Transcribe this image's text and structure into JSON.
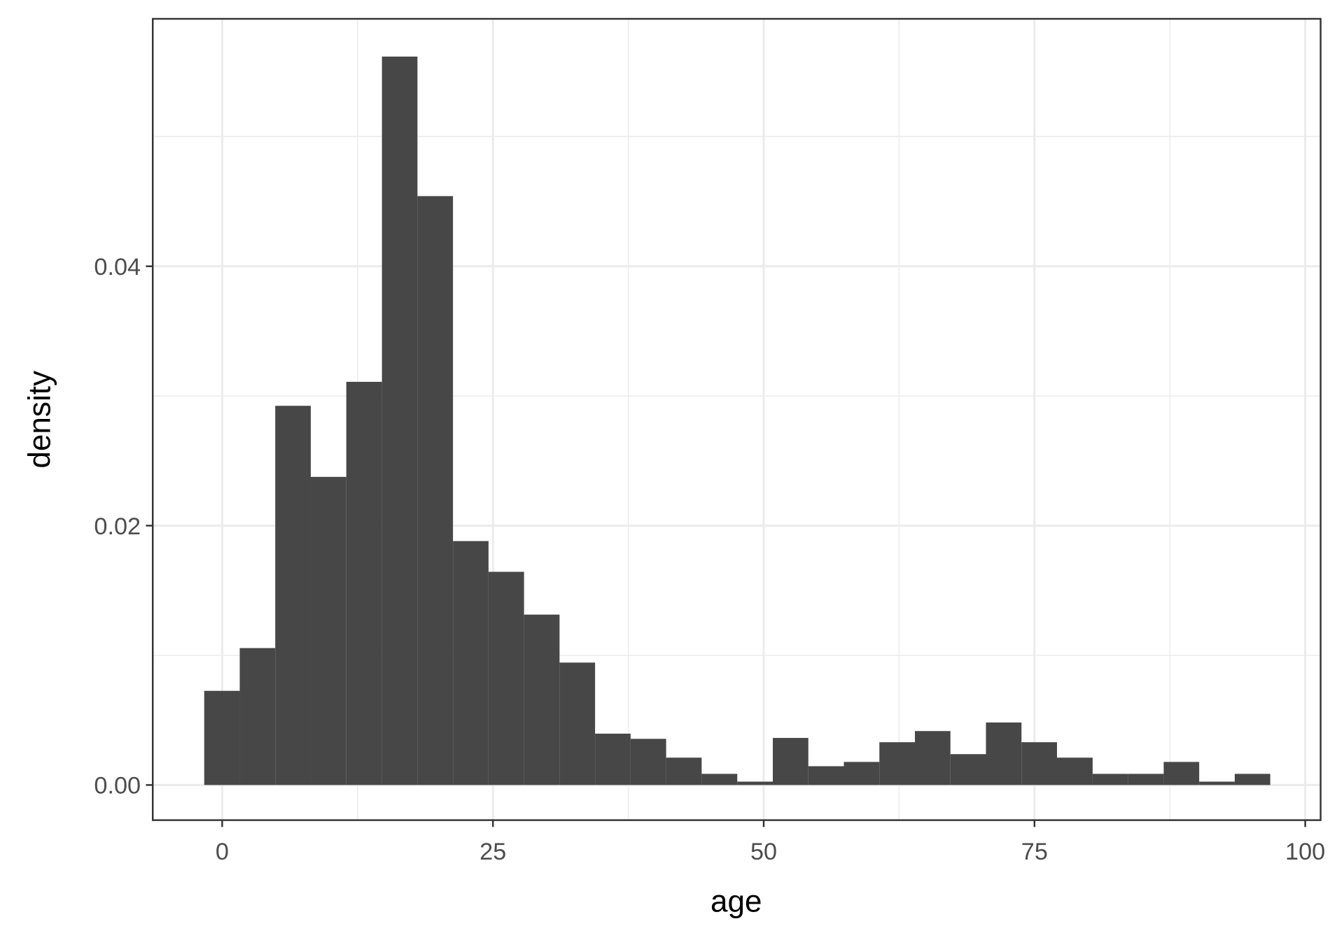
{
  "chart_data": {
    "type": "histogram",
    "x_label": "age",
    "y_label": "density",
    "bins": [
      -1.66,
      1.62,
      4.9,
      8.18,
      11.46,
      14.75,
      18.03,
      21.31,
      24.59,
      27.87,
      31.15,
      34.43,
      37.71,
      40.99,
      44.27,
      47.56,
      50.84,
      54.12,
      57.4,
      60.68,
      63.96,
      67.24,
      70.52,
      73.8,
      77.08,
      80.37,
      83.65,
      86.93,
      90.21,
      93.49,
      96.77
    ],
    "values": [
      0.00726,
      0.01056,
      0.02924,
      0.02376,
      0.03109,
      0.05617,
      0.04541,
      0.01881,
      0.01644,
      0.01314,
      0.00944,
      0.00396,
      0.00356,
      0.00211,
      0.00086,
      0.00026,
      0.00363,
      0.00145,
      0.00178,
      0.0033,
      0.00416,
      0.00238,
      0.00482,
      0.0033,
      0.00211,
      0.00086,
      0.00086,
      0.00178,
      0.00026,
      0.00086
    ],
    "color": "#474747",
    "xlim": [
      -6.41,
      101.42
    ],
    "ylim": [
      -0.00271,
      0.05908
    ],
    "xticks": [
      0,
      25,
      50,
      75,
      100
    ],
    "yticks": [
      {
        "value": 0,
        "label": "0.00"
      },
      {
        "value": 0.02,
        "label": "0.02"
      },
      {
        "value": 0.04,
        "label": "0.04"
      }
    ],
    "grid": true
  }
}
